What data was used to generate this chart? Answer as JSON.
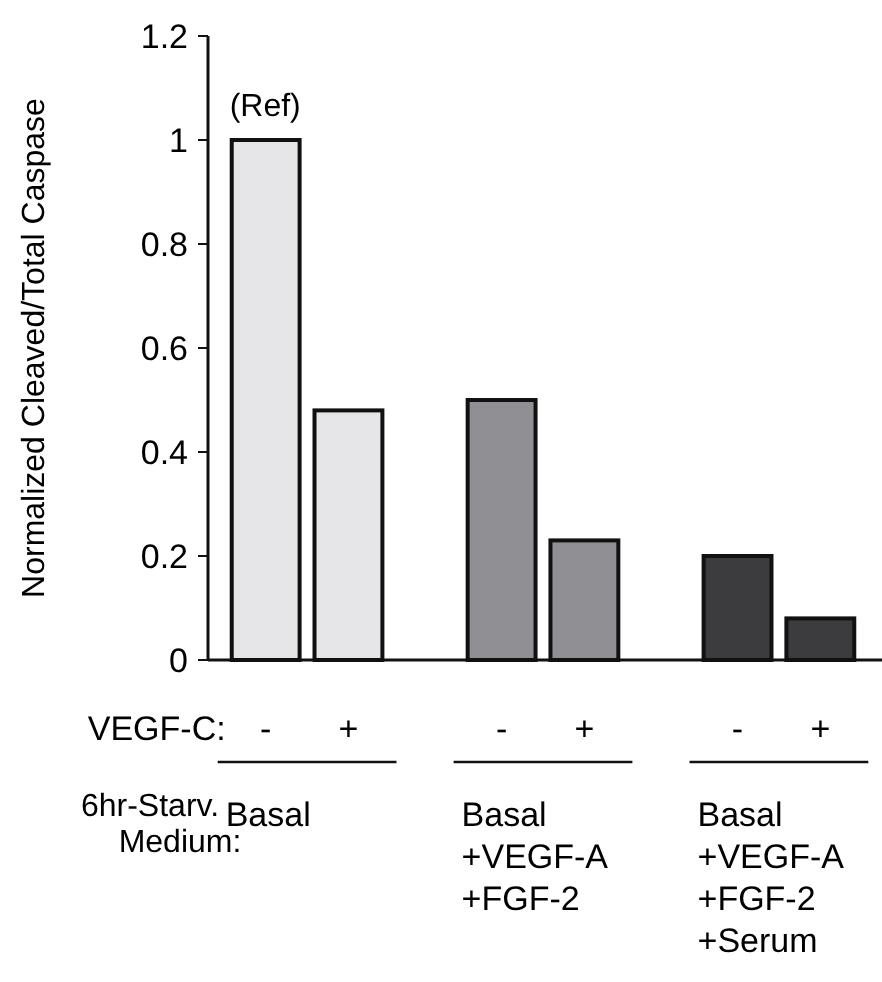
{
  "chart_data": {
    "type": "bar",
    "ylabel": "Normalized Cleaved/Total Caspase",
    "categories": [
      "-",
      "+",
      "-",
      "+",
      "-",
      "+"
    ],
    "values": [
      1.0,
      0.48,
      0.5,
      0.23,
      0.2,
      0.08
    ],
    "colors": [
      "#e6e6e8",
      "#e6e6e8",
      "#909094",
      "#909094",
      "#3c3c3e",
      "#3c3c3e"
    ],
    "ylim": [
      0,
      1.2
    ],
    "yticks": [
      0,
      0.2,
      0.4,
      0.6,
      0.8,
      1,
      1.2
    ],
    "grid": false,
    "annotations": [
      "(Ref)",
      "VEGF-C:",
      "6hr-Starv.\nMedium:",
      "Basal",
      "Basal\n+VEGF-A\n+FGF-2",
      "Basal\n+VEGF-A\n+FGF-2\n+Serum"
    ]
  }
}
